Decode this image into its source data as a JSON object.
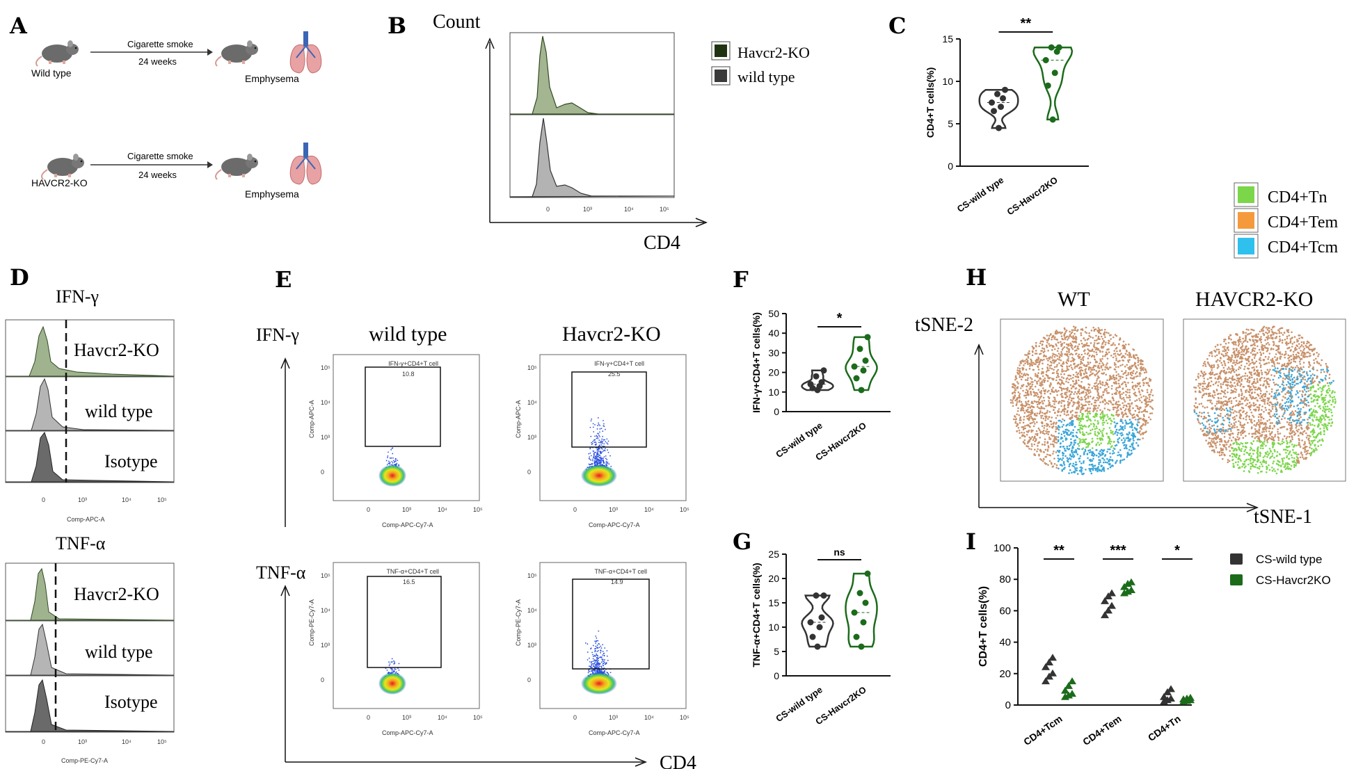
{
  "panels": {
    "A": "A",
    "B": "B",
    "C": "C",
    "D": "D",
    "E": "E",
    "F": "F",
    "G": "G",
    "H": "H",
    "I": "I"
  },
  "colors": {
    "havcr_fill": "#7f9a6a",
    "havcr_line": "#2f4a20",
    "wt_fill": "#8e8e8e",
    "wt_line": "#333333",
    "iso_fill": "#555555",
    "ko_green": "#1b6b1b",
    "wt_dark": "#333333",
    "tn": "#7cd64a",
    "tem": "#c8916a",
    "tcm": "#3aa6d8"
  },
  "panelA": {
    "row1": {
      "left": "Wild type",
      "arrow_top": "Cigarette smoke",
      "arrow_bottom": "24 weeks",
      "right": "Emphysema"
    },
    "row2": {
      "left": "HAVCR2-KO",
      "arrow_top": "Cigarette smoke",
      "arrow_bottom": "24 weeks",
      "right": "Emphysema"
    }
  },
  "panelB": {
    "y_label": "Count",
    "x_label": "CD4",
    "legend": [
      "Havcr2-KO",
      "wild type"
    ],
    "ticks": [
      "0",
      "10³",
      "10⁴",
      "10⁵"
    ]
  },
  "panelC": {
    "chart_data": {
      "type": "violin",
      "ylabel": "CD4+T cells(%)",
      "ylim": [
        0,
        15
      ],
      "yticks": [
        "0",
        "5",
        "10",
        "15"
      ],
      "categories": [
        "CS-wild type",
        "CS-Havcr2KO"
      ],
      "series": [
        {
          "name": "CS-wild type",
          "values": [
            4.5,
            6.5,
            7.0,
            7.5,
            8.0,
            8.5,
            9.0
          ]
        },
        {
          "name": "CS-Havcr2KO",
          "values": [
            5.5,
            9.5,
            11.0,
            12.5,
            13.5,
            14.0,
            14.0
          ]
        }
      ],
      "significance": "**"
    }
  },
  "legendH": [
    "CD4+Tn",
    "CD4+Tem",
    "CD4+Tcm"
  ],
  "panelD": {
    "ifn_title": "IFN-γ",
    "tnf_title": "TNF-α",
    "rows": [
      "Havcr2-KO",
      "wild type",
      "Isotype"
    ],
    "ifn_xlabel": "Comp-APC-A",
    "tnf_xlabel": "Comp-PE-Cy7-A",
    "ticks": [
      "0",
      "10³",
      "10⁴",
      "10⁵"
    ]
  },
  "panelE": {
    "col_wt": "wild type",
    "col_ko": "Havcr2-KO",
    "row_ifn": "IFN-γ",
    "row_tnf": "TNF-α",
    "x_axis": "CD4",
    "ifn_ylabel": "Comp-APC-A",
    "tnf_ylabel": "Comp-PE-Cy7-A",
    "xlabel": "Comp-APC-Cy7-A",
    "gate_ifn": "IFN-γ+CD4+T cell",
    "gate_tnf": "TNF-α+CD4+T cell",
    "val_ifn_wt": "10.8",
    "val_ifn_ko": "25.5",
    "val_tnf_wt": "16.5",
    "val_tnf_ko": "14.9",
    "yticks": [
      "10⁵",
      "10⁴",
      "10³",
      "0"
    ],
    "xticks": [
      "0",
      "10³",
      "10⁴",
      "10⁵"
    ]
  },
  "panelF": {
    "chart_data": {
      "type": "violin",
      "ylabel": "IFN-γ+CD4+T cells(%)",
      "ylim": [
        0,
        50
      ],
      "yticks": [
        "0",
        "10",
        "20",
        "30",
        "40",
        "50"
      ],
      "categories": [
        "CS-wild type",
        "CS-Havcr2KO"
      ],
      "series": [
        {
          "name": "CS-wild type",
          "values": [
            11,
            12,
            13,
            14,
            15,
            18,
            21
          ]
        },
        {
          "name": "CS-Havcr2KO",
          "values": [
            11,
            17,
            21,
            23,
            26,
            32,
            38
          ]
        }
      ],
      "significance": "*"
    }
  },
  "panelG": {
    "chart_data": {
      "type": "violin",
      "ylabel": "TNF-α+CD4+T cells(%)",
      "ylim": [
        0,
        25
      ],
      "yticks": [
        "0",
        "5",
        "10",
        "15",
        "20",
        "25"
      ],
      "categories": [
        "CS-wild type",
        "CS-Havcr2KO"
      ],
      "series": [
        {
          "name": "CS-wild type",
          "values": [
            6,
            8,
            10,
            11,
            12,
            16.5,
            16.5
          ]
        },
        {
          "name": "CS-Havcr2KO",
          "values": [
            6,
            8,
            11,
            13,
            15,
            17,
            21
          ]
        }
      ],
      "significance": "ns"
    }
  },
  "panelH": {
    "wt": "WT",
    "ko": "HAVCR2-KO",
    "y": "tSNE-2",
    "x": "tSNE-1"
  },
  "panelI": {
    "chart_data": {
      "type": "scatter",
      "ylabel": "CD4+T cells(%)",
      "ylim": [
        0,
        100
      ],
      "yticks": [
        "0",
        "20",
        "40",
        "60",
        "80",
        "100"
      ],
      "categories": [
        "CD4+Tcm",
        "CD4+Tem",
        "CD4+Tn"
      ],
      "series": [
        {
          "name": "CS-wild type",
          "values": [
            [
              15,
              18,
              20,
              24,
              27,
              30
            ],
            [
              57,
              60,
              63,
              66,
              69,
              71
            ],
            [
              2,
              3,
              4,
              5,
              8,
              10
            ]
          ]
        },
        {
          "name": "CS-Havcr2KO",
          "values": [
            [
              5,
              6,
              7,
              9,
              12,
              15
            ],
            [
              71,
              72,
              73,
              75,
              77,
              78
            ],
            [
              2,
              2.5,
              3,
              3.5,
              4,
              4.5
            ]
          ]
        }
      ],
      "significance": [
        "**",
        "***",
        "*"
      ],
      "legend": [
        "CS-wild type",
        "CS-Havcr2KO"
      ]
    }
  }
}
